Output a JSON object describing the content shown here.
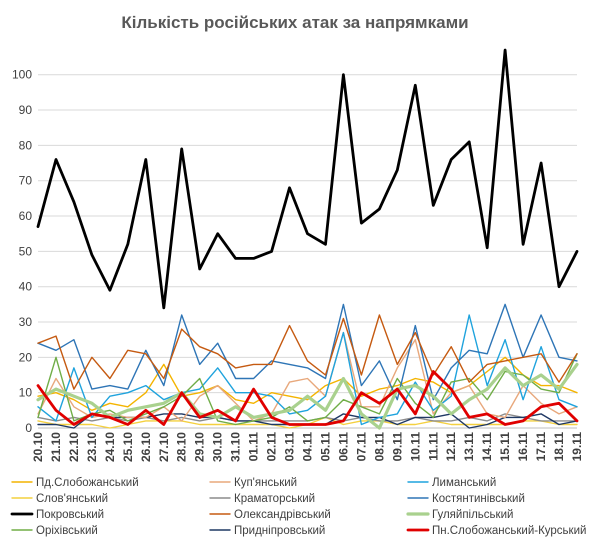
{
  "chart_data": {
    "type": "line",
    "title": "Кількість російських атак за напрямками",
    "ylim": [
      0,
      107
    ],
    "yticks": [
      0,
      10,
      20,
      30,
      40,
      50,
      60,
      70,
      80,
      90,
      100
    ],
    "grid": "horizontal",
    "legend_position": "bottom",
    "categories": [
      "20.10",
      "21.10",
      "22.10",
      "23.10",
      "24.10",
      "25.10",
      "26.10",
      "27.10",
      "28.10",
      "29.10",
      "30.10",
      "31.10",
      "01.11",
      "02.11",
      "03.11",
      "04.11",
      "05.11",
      "06.11",
      "07.11",
      "08.11",
      "09.11",
      "10.11",
      "11.11",
      "12.11",
      "13.11",
      "14.11",
      "15.11",
      "16.11",
      "17.11",
      "18.11",
      "19.11"
    ],
    "series": [
      {
        "name": "Пд.Слобожанський",
        "color": "#F4B400",
        "width": 1.4,
        "values": [
          9,
          10,
          8,
          5,
          7,
          6,
          10,
          18,
          9,
          10,
          12,
          8,
          7,
          10,
          9,
          8,
          12,
          14,
          9,
          11,
          12,
          14,
          13,
          10,
          12,
          16,
          20,
          15,
          12,
          12,
          10
        ]
      },
      {
        "name": "Куп'янський",
        "color": "#E8A87C",
        "width": 1.4,
        "values": [
          4,
          14,
          6,
          3,
          4,
          3,
          3,
          6,
          2,
          9,
          12,
          7,
          2,
          4,
          13,
          14,
          9,
          27,
          6,
          6,
          17,
          25,
          4,
          10,
          12,
          4,
          3,
          12,
          7,
          4,
          6
        ]
      },
      {
        "name": "Лиманський",
        "color": "#1FA3DD",
        "width": 1.4,
        "values": [
          6,
          2,
          17,
          3,
          9,
          10,
          12,
          8,
          10,
          11,
          17,
          10,
          10,
          9,
          4,
          5,
          9,
          27,
          1,
          3,
          4,
          13,
          5,
          9,
          32,
          12,
          25,
          8,
          23,
          8,
          6
        ]
      },
      {
        "name": "Слов'янський",
        "color": "#F4D03F",
        "width": 1.4,
        "values": [
          2,
          1,
          1,
          1,
          0,
          1,
          2,
          2,
          2,
          1,
          1,
          1,
          1,
          1,
          0,
          1,
          3,
          1,
          2,
          2,
          1,
          1,
          2,
          1,
          1,
          1,
          1,
          2,
          2,
          1,
          1
        ]
      },
      {
        "name": "Краматорський",
        "color": "#8C8C8C",
        "width": 1.4,
        "values": [
          3,
          2,
          3,
          2,
          3,
          2,
          3,
          2,
          3,
          2,
          3,
          2,
          2,
          2,
          2,
          2,
          3,
          2,
          3,
          2,
          2,
          3,
          2,
          2,
          3,
          2,
          4,
          3,
          2,
          2,
          2
        ]
      },
      {
        "name": "Костянтинівський",
        "color": "#2E75B6",
        "width": 1.4,
        "values": [
          24,
          22,
          25,
          11,
          12,
          11,
          22,
          12,
          32,
          18,
          24,
          14,
          14,
          19,
          18,
          17,
          14,
          35,
          12,
          19,
          8,
          29,
          8,
          17,
          22,
          21,
          35,
          20,
          32,
          20,
          19
        ]
      },
      {
        "name": "Покровський",
        "color": "#000000",
        "width": 2.8,
        "values": [
          57,
          76,
          64,
          49,
          39,
          52,
          76,
          34,
          79,
          45,
          55,
          48,
          48,
          50,
          68,
          55,
          52,
          100,
          58,
          62,
          73,
          97,
          63,
          76,
          81,
          51,
          107,
          52,
          75,
          40,
          50
        ]
      },
      {
        "name": "Олександрівський",
        "color": "#C55A11",
        "width": 1.4,
        "values": [
          24,
          26,
          11,
          20,
          14,
          22,
          21,
          14,
          28,
          23,
          21,
          17,
          18,
          18,
          29,
          19,
          15,
          31,
          15,
          32,
          18,
          27,
          15,
          23,
          13,
          18,
          19,
          20,
          21,
          13,
          21
        ]
      },
      {
        "name": "Гуляйпільський",
        "color": "#A9D18E",
        "width": 3.2,
        "values": [
          8,
          11,
          9,
          7,
          3,
          5,
          6,
          7,
          10,
          4,
          3,
          6,
          3,
          4,
          5,
          9,
          5,
          14,
          4,
          0,
          11,
          12,
          9,
          4,
          8,
          11,
          17,
          12,
          15,
          11,
          18
        ]
      },
      {
        "name": "Оріхівський",
        "color": "#70AD47",
        "width": 1.4,
        "values": [
          3,
          20,
          2,
          4,
          5,
          2,
          4,
          6,
          9,
          14,
          2,
          1,
          2,
          3,
          6,
          2,
          3,
          8,
          6,
          4,
          14,
          7,
          3,
          13,
          14,
          8,
          16,
          15,
          11,
          10,
          21
        ]
      },
      {
        "name": "Придніпровський",
        "color": "#1F3864",
        "width": 1.4,
        "values": [
          1,
          1,
          0,
          4,
          3,
          3,
          3,
          4,
          4,
          3,
          3,
          2,
          2,
          1,
          1,
          1,
          1,
          4,
          3,
          3,
          1,
          3,
          3,
          4,
          0,
          1,
          3,
          3,
          4,
          1,
          2
        ]
      },
      {
        "name": "Пн.Слобожанський-Курський",
        "color": "#E00000",
        "width": 2.8,
        "values": [
          12,
          5,
          1,
          4,
          3,
          1,
          5,
          1,
          10,
          3,
          5,
          2,
          11,
          3,
          1,
          1,
          1,
          2,
          10,
          7,
          11,
          4,
          16,
          11,
          3,
          4,
          1,
          2,
          6,
          7,
          2
        ]
      }
    ]
  }
}
